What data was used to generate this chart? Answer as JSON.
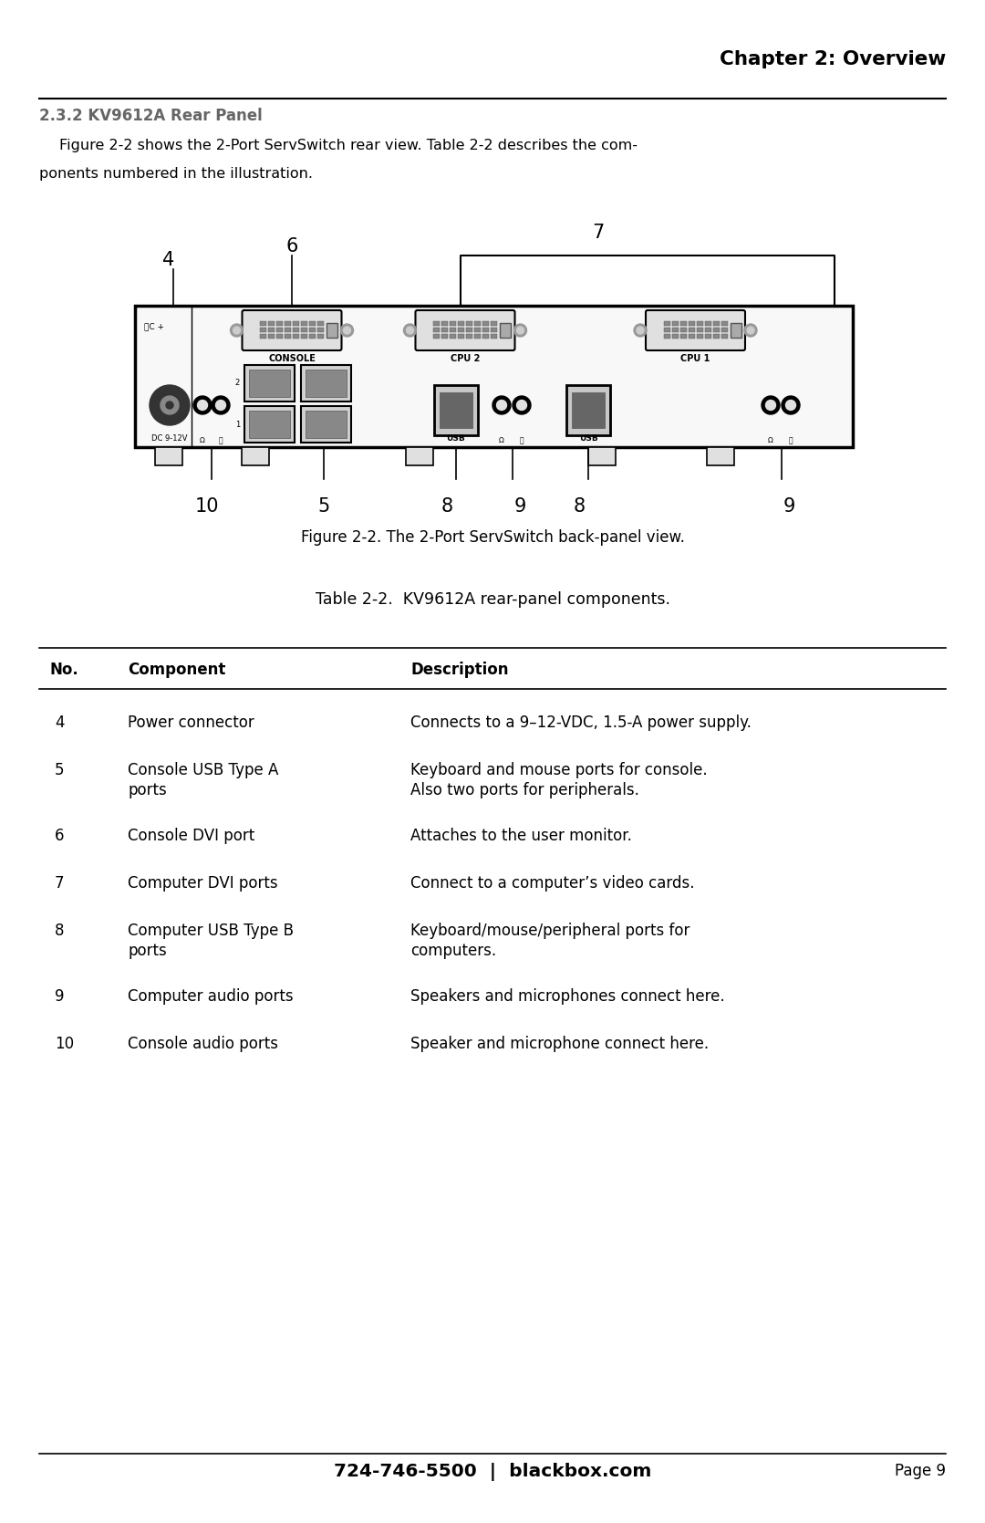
{
  "page_bg": "#ffffff",
  "chapter_header": "Chapter 2: Overview",
  "section_title": "2.3.2 KV9612A Rear Panel",
  "body_text_line1": "Figure 2-2 shows the 2-Port ServSwitch rear view. Table 2-2 describes the com-",
  "body_text_line2": "ponents numbered in the illustration.",
  "figure_caption": "Figure 2-2. The 2-Port ServSwitch back-panel view.",
  "table_caption": "Table 2-2.  KV9612A rear-panel components.",
  "table_headers": [
    "No.",
    "Component",
    "Description"
  ],
  "table_rows": [
    [
      "4",
      "Power connector",
      "Connects to a 9–12-VDC, 1.5-A power supply."
    ],
    [
      "5",
      "Console USB Type A\nports",
      "Keyboard and mouse ports for console.\nAlso two ports for peripherals."
    ],
    [
      "6",
      "Console DVI port",
      "Attaches to the user monitor."
    ],
    [
      "7",
      "Computer DVI ports",
      "Connect to a computer’s video cards."
    ],
    [
      "8",
      "Computer USB Type B\nports",
      "Keyboard/mouse/peripheral ports for\ncomputers."
    ],
    [
      "9",
      "Computer audio ports",
      "Speakers and microphones connect here."
    ],
    [
      "10",
      "Console audio ports",
      "Speaker and microphone connect here."
    ]
  ],
  "footer_left": "724-746-5500  |  blackbox.com",
  "footer_right": "Page 9",
  "section_color": "#666666",
  "text_color": "#000000"
}
